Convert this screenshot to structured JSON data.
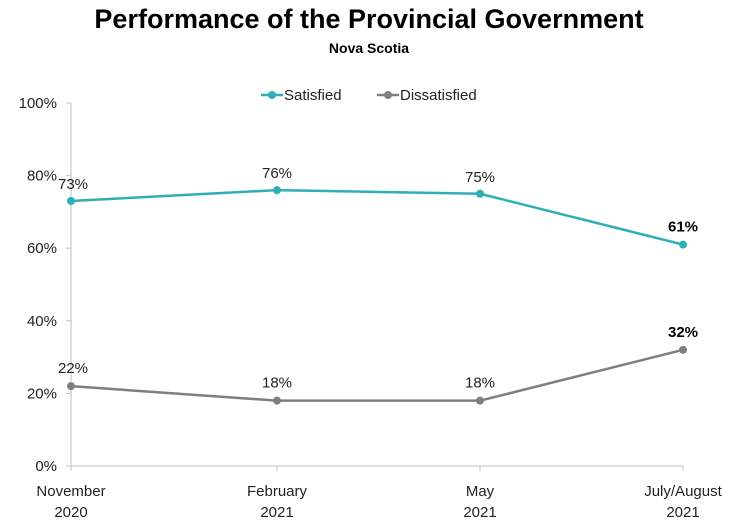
{
  "chart_data": {
    "type": "line",
    "title": "Performance of the Provincial Government",
    "subtitle": "Nova Scotia",
    "categories": [
      [
        "November",
        "2020"
      ],
      [
        "February",
        "2021"
      ],
      [
        "May",
        "2021"
      ],
      [
        "July/August",
        "2021"
      ]
    ],
    "ylim": [
      0,
      100
    ],
    "yticks": [
      0,
      20,
      40,
      60,
      80,
      100
    ],
    "ytick_labels": [
      "0%",
      "20%",
      "40%",
      "60%",
      "80%",
      "100%"
    ],
    "grid": false,
    "legend_placement": "top",
    "series": [
      {
        "name": "Satisfied",
        "color": "#2EAFB6",
        "values": [
          73,
          76,
          75,
          61
        ],
        "labels": [
          "73%",
          "76%",
          "75%",
          "61%"
        ],
        "bold_last": true
      },
      {
        "name": "Dissatisfied",
        "color": "#7F7F7F",
        "values": [
          22,
          18,
          18,
          32
        ],
        "labels": [
          "22%",
          "18%",
          "18%",
          "32%"
        ],
        "bold_last": true
      }
    ]
  }
}
